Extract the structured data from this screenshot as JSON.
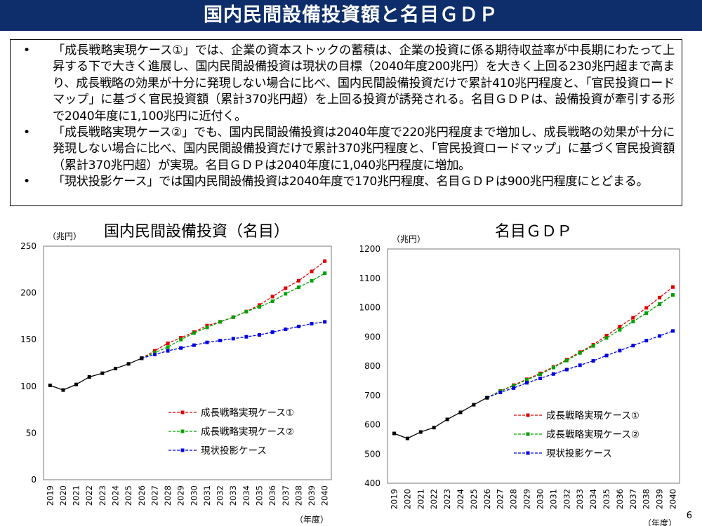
{
  "header": {
    "title": "国内民間設備投資額と名目ＧＤＰ"
  },
  "summary": {
    "bullet_symbol": "•",
    "items": [
      "「成長戦略実現ケース①」では、企業の資本ストックの蓄積は、企業の投資に係る期待収益率が中長期にわたって上昇する下で大きく進展し、国内民間設備投資は現状の目標（2040年度200兆円）を大きく上回る230兆円超まで高まり、成長戦略の効果が十分に発現しない場合に比べ、国内民間設備投資だけで累計410兆円程度と、「官民投資ロードマップ」に基づく官民投資額（累計370兆円超）を上回る投資が誘発される。名目ＧＤＰは、設備投資が牽引する形で2040年度に1,100兆円に近付く。",
      "「成長戦略実現ケース②」でも、国内民間設備投資は2040年度で220兆円程度まで増加し、成長戦略の効果が十分に発現しない場合に比べ、国内民間設備投資だけで累計370兆円程度と、「官民投資ロードマップ」に基づく官民投資額（累計370兆円超）が実現。名目ＧＤＰは2040年度に1,040兆円程度に増加。",
      "「現状投影ケース」では国内民間設備投資は2040年度で170兆円程度、名目ＧＤＰは900兆円程度にとどまる。"
    ]
  },
  "chart_data": [
    {
      "type": "line",
      "title": "国内民間設備投資（名目）",
      "ylabel": "（兆円）",
      "xlabel": "（年度）",
      "ylim": [
        0,
        250
      ],
      "yticks": [
        0,
        50,
        100,
        150,
        200,
        250
      ],
      "grid": false,
      "legend_position": "bottom-right",
      "categories": [
        "2019",
        "2020",
        "2021",
        "2022",
        "2023",
        "2024",
        "2025",
        "2026",
        "2027",
        "2028",
        "2029",
        "2030",
        "2031",
        "2032",
        "2033",
        "2034",
        "2035",
        "2036",
        "2037",
        "2038",
        "2039",
        "2040"
      ],
      "actual": {
        "values": [
          101,
          96,
          102,
          110,
          114,
          119,
          124,
          130
        ],
        "color": "#000000"
      },
      "series": [
        {
          "name": "成長戦略実現ケース①",
          "color": "#e00000",
          "values": [
            null,
            null,
            null,
            null,
            null,
            null,
            null,
            130,
            138,
            146,
            152,
            158,
            165,
            169,
            174,
            180,
            187,
            196,
            205,
            213,
            223,
            234
          ]
        },
        {
          "name": "成長戦略実現ケース②",
          "color": "#00a000",
          "values": [
            null,
            null,
            null,
            null,
            null,
            null,
            null,
            130,
            136,
            142,
            150,
            157,
            163,
            169,
            174,
            180,
            185,
            191,
            199,
            206,
            213,
            221
          ]
        },
        {
          "name": "現状投影ケース",
          "color": "#0000e0",
          "values": [
            null,
            null,
            null,
            null,
            null,
            null,
            null,
            130,
            134,
            138,
            141,
            144,
            147,
            149,
            151,
            153,
            155,
            158,
            161,
            164,
            167,
            169
          ]
        }
      ]
    },
    {
      "type": "line",
      "title": "名目ＧＤＰ",
      "ylabel": "（兆円）",
      "xlabel": "（年度）",
      "ylim": [
        400,
        1200
      ],
      "yticks": [
        400,
        500,
        600,
        700,
        800,
        900,
        1000,
        1100,
        1200
      ],
      "grid": false,
      "legend_position": "bottom-right",
      "categories": [
        "2019",
        "2020",
        "2021",
        "2022",
        "2023",
        "2024",
        "2025",
        "2026",
        "2027",
        "2028",
        "2029",
        "2030",
        "2031",
        "2032",
        "2033",
        "2034",
        "2035",
        "2036",
        "2037",
        "2038",
        "2039",
        "2040"
      ],
      "actual": {
        "values": [
          570,
          553,
          575,
          590,
          618,
          642,
          668,
          692
        ],
        "color": "#000000"
      },
      "series": [
        {
          "name": "成長戦略実現ケース①",
          "color": "#e00000",
          "values": [
            null,
            null,
            null,
            null,
            null,
            null,
            null,
            692,
            715,
            735,
            755,
            775,
            797,
            822,
            848,
            873,
            904,
            935,
            965,
            999,
            1034,
            1070
          ]
        },
        {
          "name": "成長戦略実現ケース②",
          "color": "#00a000",
          "values": [
            null,
            null,
            null,
            null,
            null,
            null,
            null,
            692,
            714,
            733,
            753,
            772,
            795,
            819,
            845,
            869,
            896,
            924,
            952,
            981,
            1012,
            1043
          ]
        },
        {
          "name": "現状投影ケース",
          "color": "#0000e0",
          "values": [
            null,
            null,
            null,
            null,
            null,
            null,
            null,
            692,
            710,
            725,
            743,
            758,
            773,
            788,
            803,
            818,
            836,
            853,
            870,
            887,
            903,
            920
          ]
        }
      ]
    }
  ],
  "page": {
    "number": "6"
  }
}
